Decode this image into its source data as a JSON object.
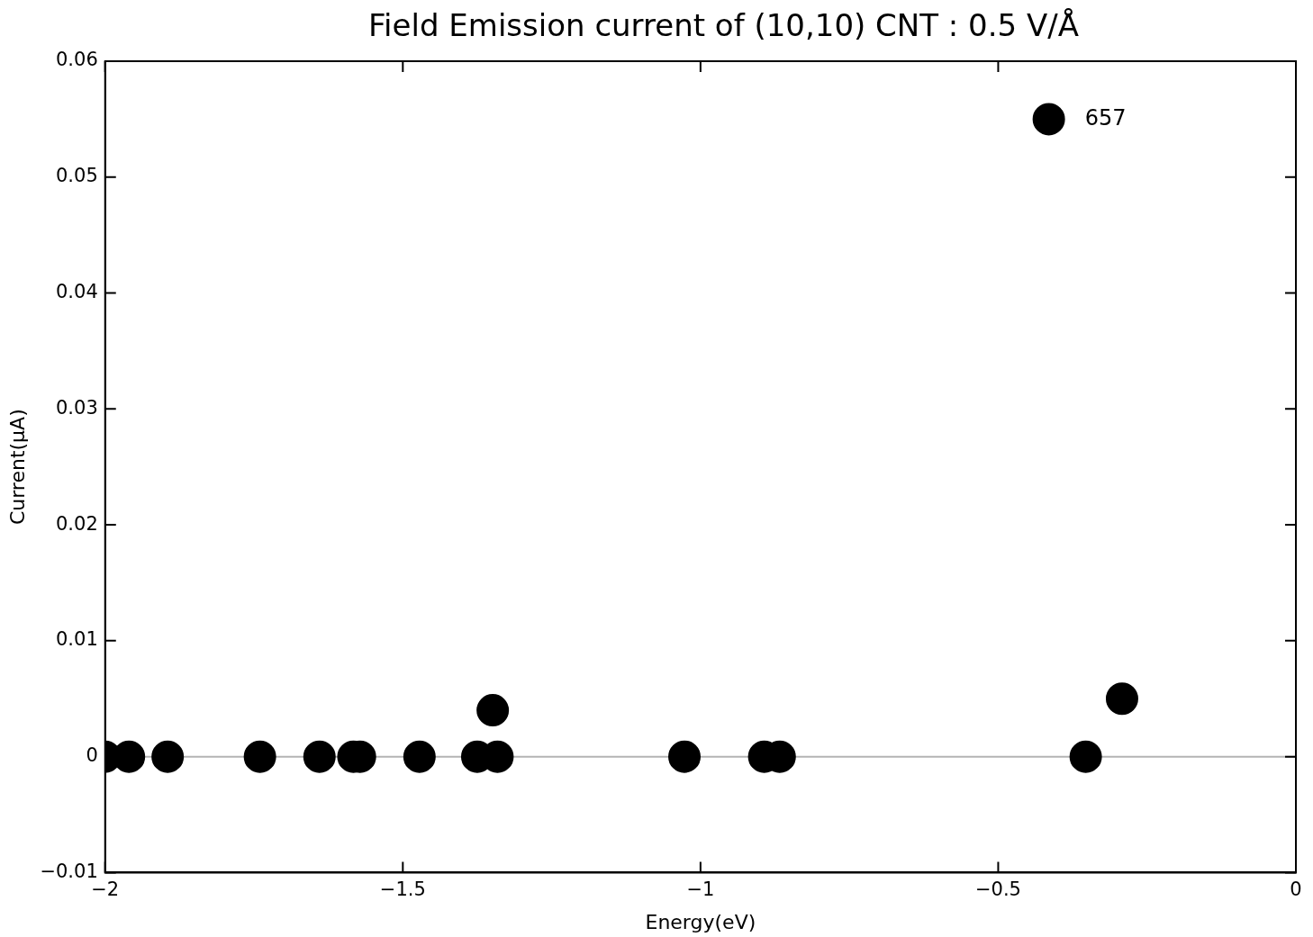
{
  "chart_data": {
    "type": "scatter",
    "title": "Field Emission current of (10,10) CNT : 0.5 V/Å",
    "xlabel": "Energy(eV)",
    "ylabel": "Current(µA)",
    "x": [
      -2.0,
      -1.96,
      -1.895,
      -1.74,
      -1.64,
      -1.583,
      -1.572,
      -1.472,
      -1.375,
      -1.349,
      -1.341,
      -1.027,
      -0.893,
      -0.867,
      -0.415,
      -0.353,
      -0.292
    ],
    "series": [
      {
        "color": "#000000",
        "values": [
          0,
          0,
          0,
          0,
          0,
          0,
          0,
          0,
          0,
          0.004,
          0,
          0,
          0,
          0,
          0.055,
          0,
          0.005
        ]
      }
    ],
    "xlim": [
      -2,
      0
    ],
    "xticks": [
      {
        "value": -2,
        "label": "−2"
      },
      {
        "value": -1.5,
        "label": "−1.5"
      },
      {
        "value": -1,
        "label": "−1"
      },
      {
        "value": -0.5,
        "label": "−0.5"
      },
      0
    ],
    "ylim": [
      -0.01,
      0.06
    ],
    "yticks": [
      {
        "value": -0.01,
        "label": "−0.01"
      },
      0,
      0.01,
      0.02,
      0.03,
      0.04,
      0.05,
      0.06
    ],
    "ref_lines": [
      {
        "axis": "y",
        "value": 0,
        "color": "#b4b4b4"
      }
    ],
    "annotations": [
      {
        "text": "657",
        "x": -0.415,
        "y": 0.055
      }
    ],
    "grid": false,
    "legend": false,
    "marker": "circle"
  }
}
